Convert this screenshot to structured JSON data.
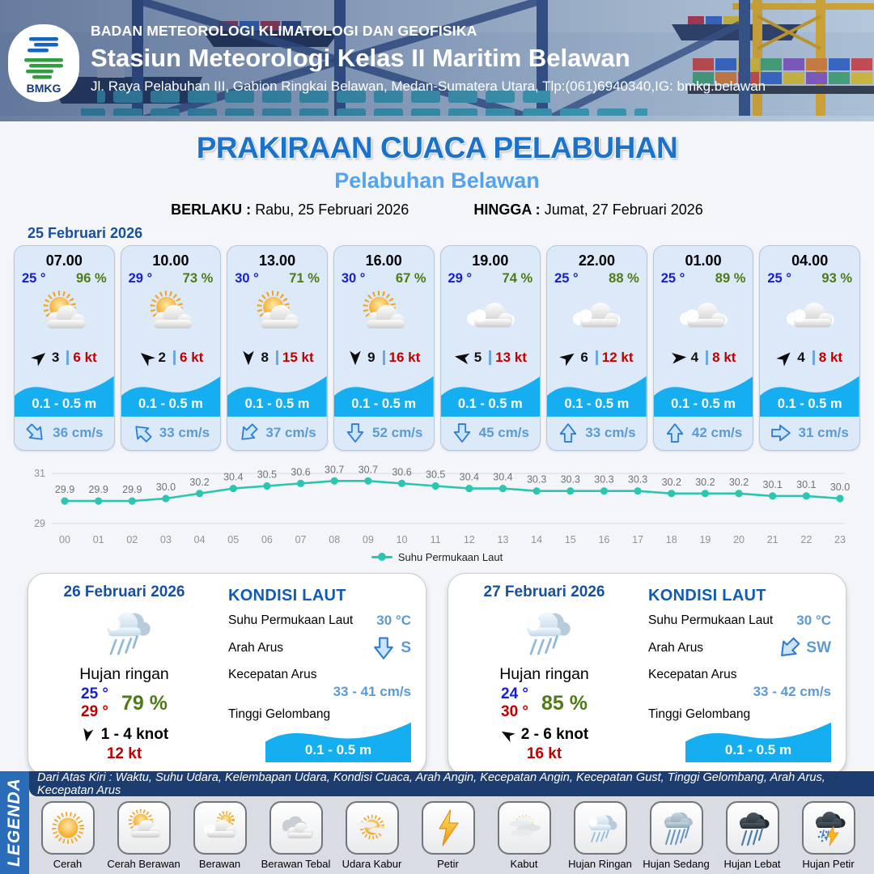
{
  "header": {
    "logo_text": "BMKG",
    "agency": "BADAN METEOROLOGI KLIMATOLOGI DAN GEOFISIKA",
    "station": "Stasiun Meteorologi Kelas II Maritim Belawan",
    "address": "Jl. Raya Pelabuhan III, Gabion Ringkai Belawan, Medan-Sumatera Utara, Tlp:(061)6940340,IG: bmkg.belawan"
  },
  "title_block": {
    "title": "PRAKIRAAN CUACA PELABUHAN",
    "subtitle": "Pelabuhan Belawan",
    "valid_from_label": "BERLAKU :",
    "valid_from": "Rabu, 25 Februari 2026",
    "valid_to_label": "HINGGA :",
    "valid_to": "Jumat, 27 Februari 2026",
    "forecast_date": "25 Februari 2026"
  },
  "hourly": [
    {
      "time": "07.00",
      "temp": "25 °",
      "humidity": "96 %",
      "icon": "cerah-berawan",
      "wind_deg": -40,
      "wind": "3",
      "gust": "6 kt",
      "wave": "0.1 - 0.5 m",
      "cur_deg": -45,
      "current": "36 cm/s"
    },
    {
      "time": "10.00",
      "temp": "29 °",
      "humidity": "73 %",
      "icon": "cerah-berawan",
      "wind_deg": -140,
      "wind": "2",
      "gust": "6 kt",
      "wave": "0.1 - 0.5 m",
      "cur_deg": 135,
      "current": "33 cm/s"
    },
    {
      "time": "13.00",
      "temp": "30 °",
      "humidity": "71 %",
      "icon": "cerah-berawan",
      "wind_deg": 90,
      "wind": "8",
      "gust": "15 kt",
      "wave": "0.1 - 0.5 m",
      "cur_deg": 45,
      "current": "37 cm/s"
    },
    {
      "time": "16.00",
      "temp": "30 °",
      "humidity": "67 %",
      "icon": "cerah-berawan",
      "wind_deg": 90,
      "wind": "9",
      "gust": "16 kt",
      "wave": "0.1 - 0.5 m",
      "cur_deg": 0,
      "current": "52 cm/s"
    },
    {
      "time": "19.00",
      "temp": "29 °",
      "humidity": "74 %",
      "icon": "berawan",
      "wind_deg": -170,
      "wind": "5",
      "gust": "13 kt",
      "wave": "0.1 - 0.5 m",
      "cur_deg": 0,
      "current": "45 cm/s"
    },
    {
      "time": "22.00",
      "temp": "25 °",
      "humidity": "88 %",
      "icon": "berawan",
      "wind_deg": -35,
      "wind": "6",
      "gust": "12 kt",
      "wave": "0.1 - 0.5 m",
      "cur_deg": 180,
      "current": "33 cm/s"
    },
    {
      "time": "01.00",
      "temp": "25 °",
      "humidity": "89 %",
      "icon": "berawan",
      "wind_deg": -5,
      "wind": "4",
      "gust": "8 kt",
      "wave": "0.1 - 0.5 m",
      "cur_deg": 180,
      "current": "42 cm/s"
    },
    {
      "time": "04.00",
      "temp": "25 °",
      "humidity": "93 %",
      "icon": "berawan",
      "wind_deg": -45,
      "wind": "4",
      "gust": "8 kt",
      "wave": "0.1 - 0.5 m",
      "cur_deg": -90,
      "current": "31 cm/s"
    }
  ],
  "chart_data": {
    "type": "line",
    "x": [
      "00",
      "01",
      "02",
      "03",
      "04",
      "05",
      "06",
      "07",
      "08",
      "09",
      "10",
      "11",
      "12",
      "13",
      "14",
      "15",
      "16",
      "17",
      "18",
      "19",
      "20",
      "21",
      "22",
      "23"
    ],
    "series": [
      {
        "name": "Suhu Permukaan Laut",
        "values": [
          29.9,
          29.9,
          29.9,
          30.0,
          30.2,
          30.4,
          30.5,
          30.6,
          30.7,
          30.7,
          30.6,
          30.5,
          30.4,
          30.4,
          30.3,
          30.3,
          30.3,
          30.3,
          30.2,
          30.2,
          30.2,
          30.1,
          30.1,
          30.0
        ]
      }
    ],
    "ylim": [
      29,
      31
    ],
    "yticks": [
      31,
      29
    ],
    "legend": "Suhu Permukaan Laut",
    "legend_position": "bottom",
    "grid": true,
    "line_color": "#2cc6b0"
  },
  "days": [
    {
      "date": "26 Februari 2026",
      "icon": "hujan-ringan",
      "condition": "Hujan ringan",
      "temp_min": "25 °",
      "temp_max": "29 °",
      "humidity": "79 %",
      "wind_deg": 100,
      "wind_range": "1  - 4 knot",
      "gust": "12 kt",
      "sea": {
        "heading": "KONDISI LAUT",
        "sst_label": "Suhu Permukaan Laut",
        "sst": "30 °C",
        "dir_label": "Arah Arus",
        "dir": "S",
        "dir_deg": 0,
        "speed_label": "Kecepatan Arus",
        "speed": "33 - 41 cm/s",
        "wave_label": "Tinggi Gelombang",
        "wave": "0.1 - 0.5 m"
      }
    },
    {
      "date": "27 Februari 2026",
      "icon": "hujan-ringan",
      "condition": "Hujan ringan",
      "temp_min": "24 °",
      "temp_max": "30 °",
      "humidity": "85 %",
      "wind_deg": -150,
      "wind_range": "2  - 6 knot",
      "gust": "16 kt",
      "sea": {
        "heading": "KONDISI LAUT",
        "sst_label": "Suhu Permukaan Laut",
        "sst": "30 °C",
        "dir_label": "Arah Arus",
        "dir": "SW",
        "dir_deg": 45,
        "speed_label": "Kecepatan Arus",
        "speed": "33  - 42 cm/s",
        "wave_label": "Tinggi Gelombang",
        "wave": "0.1 - 0.5 m"
      }
    }
  ],
  "legend": {
    "strip": "LEGENDA",
    "note": "Dari Atas Kiri : Waktu, Suhu Udara, Kelembapan Udara, Kondisi Cuaca, Arah Angin, Kecepatan Angin, Kecepatan Gust, Tinggi Gelombang, Arah Arus, Kecepatan Arus",
    "items": [
      {
        "label": "Cerah",
        "icon": "cerah"
      },
      {
        "label": "Cerah Berawan",
        "icon": "cerah-berawan"
      },
      {
        "label": "Berawan",
        "icon": "berawan-sun"
      },
      {
        "label": "Berawan Tebal",
        "icon": "berawan-tebal"
      },
      {
        "label": "Udara Kabur",
        "icon": "udara-kabur"
      },
      {
        "label": "Petir",
        "icon": "petir"
      },
      {
        "label": "Kabut",
        "icon": "kabut"
      },
      {
        "label": "Hujan Ringan",
        "icon": "hujan-ringan"
      },
      {
        "label": "Hujan Sedang",
        "icon": "hujan-sedang"
      },
      {
        "label": "Hujan Lebat",
        "icon": "hujan-lebat"
      },
      {
        "label": "Hujan Petir",
        "icon": "hujan-petir"
      }
    ]
  },
  "colors": {
    "title": "#1b72c8",
    "subtitle": "#53a3ee",
    "temperature": "#1720cf",
    "humidity": "#507a18",
    "gust": "#c00000",
    "wave": "#15aef0",
    "current": "#5b9bd5",
    "chart_line": "#2cc6b0",
    "sea_heading": "#0f5cb5"
  }
}
